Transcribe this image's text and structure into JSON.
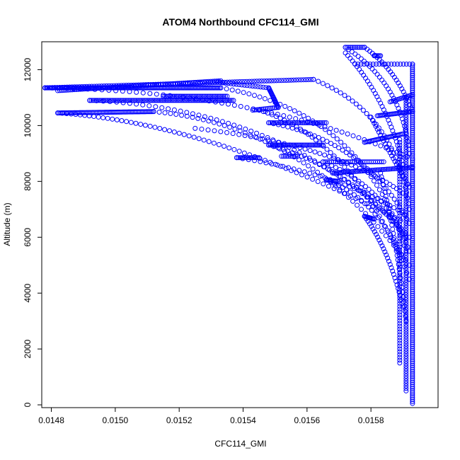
{
  "chart_data": {
    "type": "scatter",
    "title": "ATOM4 Northbound CFC114_GMI",
    "xlabel": "CFC114_GMI",
    "ylabel": "Altitude (m)",
    "xlim": [
      0.01477,
      0.01601
    ],
    "ylim": [
      -100,
      13000
    ],
    "xticks": [
      0.0148,
      0.015,
      0.0152,
      0.0154,
      0.0156,
      0.0158
    ],
    "xtick_labels": [
      "0.0148",
      "0.0150",
      "0.0152",
      "0.0154",
      "0.0156",
      "0.0158"
    ],
    "yticks": [
      0,
      2000,
      4000,
      6000,
      8000,
      10000,
      12000
    ],
    "ytick_labels": [
      "0",
      "2000",
      "4000",
      "6000",
      "8000",
      "10000",
      "12000"
    ],
    "grid": false,
    "marker": "open-circle",
    "color": "#0000ff",
    "series": [
      {
        "segments": [
          {
            "kind": "line",
            "from": [
              0.01593,
              50
            ],
            "to": [
              0.01593,
              12200
            ],
            "n": 180
          },
          {
            "kind": "line",
            "from": [
              0.01591,
              500
            ],
            "to": [
              0.01591,
              11000
            ],
            "n": 120
          },
          {
            "kind": "line",
            "from": [
              0.01589,
              1500
            ],
            "to": [
              0.01589,
              9500
            ],
            "n": 80
          },
          {
            "kind": "line",
            "from": [
              0.01478,
              11350
            ],
            "to": [
              0.01533,
              11350
            ],
            "n": 120
          },
          {
            "kind": "line",
            "from": [
              0.01478,
              11350
            ],
            "to": [
              0.01562,
              11650
            ],
            "n": 110
          },
          {
            "kind": "line",
            "from": [
              0.01482,
              11250
            ],
            "to": [
              0.01533,
              11600
            ],
            "n": 80
          },
          {
            "kind": "line",
            "from": [
              0.01492,
              10900
            ],
            "to": [
              0.01537,
              10900
            ],
            "n": 90
          },
          {
            "kind": "line",
            "from": [
              0.01515,
              11050
            ],
            "to": [
              0.01535,
              11050
            ],
            "n": 40
          },
          {
            "kind": "line",
            "from": [
              0.01482,
              10450
            ],
            "to": [
              0.01512,
              10500
            ],
            "n": 70
          },
          {
            "kind": "line",
            "from": [
              0.01532,
              11550
            ],
            "to": [
              0.01548,
              11350
            ],
            "n": 20
          },
          {
            "kind": "line",
            "from": [
              0.01548,
              11350
            ],
            "to": [
              0.01551,
              10650
            ],
            "n": 20
          },
          {
            "kind": "line",
            "from": [
              0.01543,
              10550
            ],
            "to": [
              0.01551,
              10650
            ],
            "n": 15
          },
          {
            "kind": "line",
            "from": [
              0.01548,
              10100
            ],
            "to": [
              0.01566,
              10100
            ],
            "n": 35
          },
          {
            "kind": "line",
            "from": [
              0.01548,
              9300
            ],
            "to": [
              0.01565,
              9300
            ],
            "n": 35
          },
          {
            "kind": "line",
            "from": [
              0.01538,
              8850
            ],
            "to": [
              0.01545,
              8850
            ],
            "n": 15
          },
          {
            "kind": "line",
            "from": [
              0.01552,
              8900
            ],
            "to": [
              0.01557,
              8900
            ],
            "n": 10
          },
          {
            "kind": "line",
            "from": [
              0.01565,
              8700
            ],
            "to": [
              0.01584,
              8700
            ],
            "n": 30
          },
          {
            "kind": "line",
            "from": [
              0.01568,
              8300
            ],
            "to": [
              0.01593,
              8500
            ],
            "n": 50
          },
          {
            "kind": "line",
            "from": [
              0.01566,
              8050
            ],
            "to": [
              0.0157,
              8000
            ],
            "n": 10
          },
          {
            "kind": "line",
            "from": [
              0.01578,
              9400
            ],
            "to": [
              0.0159,
              9700
            ],
            "n": 30
          },
          {
            "kind": "line",
            "from": [
              0.01582,
              10350
            ],
            "to": [
              0.01593,
              10500
            ],
            "n": 25
          },
          {
            "kind": "line",
            "from": [
              0.01586,
              10850
            ],
            "to": [
              0.01593,
              11100
            ],
            "n": 15
          },
          {
            "kind": "line",
            "from": [
              0.01575,
              12200
            ],
            "to": [
              0.01593,
              12200
            ],
            "n": 20
          },
          {
            "kind": "line",
            "from": [
              0.01578,
              6750
            ],
            "to": [
              0.01581,
              6650
            ],
            "n": 10
          },
          {
            "kind": "line",
            "from": [
              0.01572,
              12800
            ],
            "to": [
              0.01578,
              12800
            ],
            "n": 12
          },
          {
            "kind": "line",
            "from": [
              0.01581,
              12500
            ],
            "to": [
              0.01583,
              12500
            ],
            "n": 6
          },
          {
            "kind": "quad",
            "from": [
              0.01478,
              11350
            ],
            "ctrl": [
              0.01545,
              11250
            ],
            "to": [
              0.01593,
              8800
            ],
            "n": 60
          },
          {
            "kind": "quad",
            "from": [
              0.01482,
              10450
            ],
            "ctrl": [
              0.0153,
              10100
            ],
            "to": [
              0.01591,
              6500
            ],
            "n": 70
          },
          {
            "kind": "quad",
            "from": [
              0.01492,
              10900
            ],
            "ctrl": [
              0.01555,
              10600
            ],
            "to": [
              0.01592,
              6000
            ],
            "n": 60
          },
          {
            "kind": "quad",
            "from": [
              0.01512,
              10500
            ],
            "ctrl": [
              0.0156,
              10000
            ],
            "to": [
              0.01592,
              5000
            ],
            "n": 55
          },
          {
            "kind": "quad",
            "from": [
              0.01533,
              11350
            ],
            "ctrl": [
              0.01578,
              10500
            ],
            "to": [
              0.01591,
              5500
            ],
            "n": 50
          },
          {
            "kind": "quad",
            "from": [
              0.01545,
              10550
            ],
            "ctrl": [
              0.01575,
              9500
            ],
            "to": [
              0.01592,
              4500
            ],
            "n": 45
          },
          {
            "kind": "quad",
            "from": [
              0.01562,
              11650
            ],
            "ctrl": [
              0.01588,
              10500
            ],
            "to": [
              0.01592,
              7000
            ],
            "n": 35
          },
          {
            "kind": "quad",
            "from": [
              0.01525,
              9900
            ],
            "ctrl": [
              0.0157,
              9300
            ],
            "to": [
              0.01591,
              7500
            ],
            "n": 45
          },
          {
            "kind": "quad",
            "from": [
              0.01548,
              10100
            ],
            "ctrl": [
              0.01578,
              9500
            ],
            "to": [
              0.01592,
              6500
            ],
            "n": 40
          },
          {
            "kind": "quad",
            "from": [
              0.01548,
              9300
            ],
            "ctrl": [
              0.01574,
              8500
            ],
            "to": [
              0.01591,
              6000
            ],
            "n": 35
          },
          {
            "kind": "quad",
            "from": [
              0.01538,
              8850
            ],
            "ctrl": [
              0.0157,
              8300
            ],
            "to": [
              0.01591,
              6800
            ],
            "n": 35
          },
          {
            "kind": "quad",
            "from": [
              0.01565,
              8700
            ],
            "ctrl": [
              0.01585,
              7800
            ],
            "to": [
              0.01592,
              5500
            ],
            "n": 30
          },
          {
            "kind": "quad",
            "from": [
              0.01566,
              8050
            ],
            "ctrl": [
              0.01582,
              7400
            ],
            "to": [
              0.01591,
              5000
            ],
            "n": 25
          },
          {
            "kind": "quad",
            "from": [
              0.01572,
              12800
            ],
            "ctrl": [
              0.0159,
              11500
            ],
            "to": [
              0.01592,
              9000
            ],
            "n": 35
          },
          {
            "kind": "quad",
            "from": [
              0.01578,
              12800
            ],
            "ctrl": [
              0.01588,
              12000
            ],
            "to": [
              0.01593,
              10500
            ],
            "n": 25
          },
          {
            "kind": "quad",
            "from": [
              0.01572,
              12600
            ],
            "ctrl": [
              0.01585,
              11000
            ],
            "to": [
              0.0159,
              8600
            ],
            "n": 35
          },
          {
            "kind": "quad",
            "from": [
              0.0158,
              10300
            ],
            "ctrl": [
              0.01586,
              9000
            ],
            "to": [
              0.01592,
              7800
            ],
            "n": 25
          },
          {
            "kind": "quad",
            "from": [
              0.01578,
              6750
            ],
            "ctrl": [
              0.01586,
              5500
            ],
            "to": [
              0.0159,
              3500
            ],
            "n": 30
          },
          {
            "kind": "quad",
            "from": [
              0.01583,
              8300
            ],
            "ctrl": [
              0.01588,
              6000
            ],
            "to": [
              0.01591,
              3000
            ],
            "n": 35
          }
        ]
      }
    ]
  }
}
